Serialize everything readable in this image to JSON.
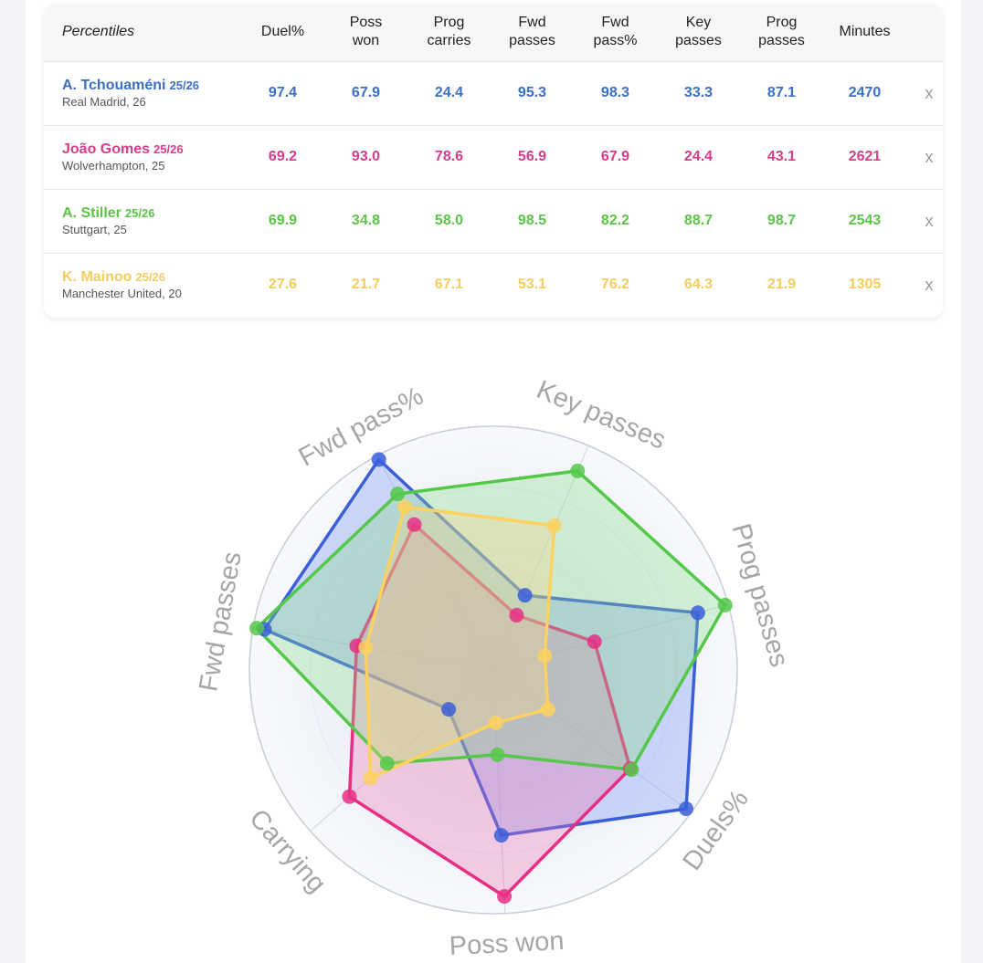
{
  "table": {
    "corner_label": "Percentiles",
    "columns": [
      {
        "line1": "Duel%",
        "line2": ""
      },
      {
        "line1": "Poss",
        "line2": "won"
      },
      {
        "line1": "Prog",
        "line2": "carries"
      },
      {
        "line1": "Fwd",
        "line2": "passes"
      },
      {
        "line1": "Fwd",
        "line2": "pass%"
      },
      {
        "line1": "Key",
        "line2": "passes"
      },
      {
        "line1": "Prog",
        "line2": "passes"
      },
      {
        "line1": "Minutes",
        "line2": ""
      }
    ],
    "remove_label": "x",
    "players": [
      {
        "name": "A. Tchouaméni",
        "season": "25/26",
        "meta": "Real Madrid, 26",
        "color": "#3b6fc4",
        "values": [
          "97.4",
          "67.9",
          "24.4",
          "95.3",
          "98.3",
          "33.3",
          "87.1",
          "2470"
        ]
      },
      {
        "name": "João Gomes",
        "season": "25/26",
        "meta": "Wolverhampton, 25",
        "color": "#d63c8c",
        "values": [
          "69.2",
          "93.0",
          "78.6",
          "56.9",
          "67.9",
          "24.4",
          "43.1",
          "2621"
        ]
      },
      {
        "name": "A. Stiller",
        "season": "25/26",
        "meta": "Stuttgart, 25",
        "color": "#5cc447",
        "values": [
          "69.9",
          "34.8",
          "58.0",
          "98.5",
          "82.2",
          "88.7",
          "98.7",
          "2543"
        ]
      },
      {
        "name": "K. Mainoo",
        "season": "25/26",
        "meta": "Manchester United, 20",
        "color": "#f5cc5e",
        "values": [
          "27.6",
          "21.7",
          "67.1",
          "53.1",
          "76.2",
          "64.3",
          "21.9",
          "1305"
        ]
      }
    ]
  },
  "chart_data": {
    "type": "radar",
    "axes": [
      "Key passes",
      "Prog passes",
      "Duels%",
      "Poss won",
      "Carrying",
      "Fwd passes",
      "Fwd pass%"
    ],
    "range": [
      0,
      100
    ],
    "series": [
      {
        "name": "A. Tchouaméni",
        "line_color": "#3a5fd9",
        "fill_color": "#6f8ff5",
        "values": [
          33.3,
          87.1,
          97.4,
          67.9,
          24.4,
          95.3,
          98.3
        ]
      },
      {
        "name": "João Gomes",
        "line_color": "#e62f84",
        "fill_color": "#ee70b0",
        "values": [
          24.4,
          43.1,
          69.2,
          93.0,
          78.6,
          56.9,
          67.9
        ]
      },
      {
        "name": "A. Stiller",
        "line_color": "#55c84a",
        "fill_color": "#88dc86",
        "values": [
          88.7,
          98.7,
          69.9,
          34.8,
          58.0,
          98.5,
          82.2
        ]
      },
      {
        "name": "K. Mainoo",
        "line_color": "#fbd15f",
        "fill_color": "#f8d682",
        "values": [
          64.3,
          21.9,
          27.6,
          21.7,
          67.1,
          53.1,
          76.2
        ]
      }
    ]
  }
}
